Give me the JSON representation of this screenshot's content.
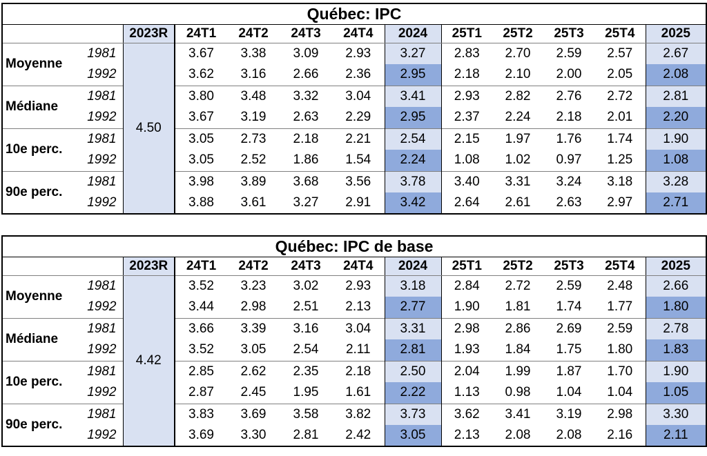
{
  "colors": {
    "prev_fill": "#d9e1f2",
    "annual_fill_1981": "#d9e1f2",
    "annual_fill_1992": "#8faadc",
    "separator_line": "#7f7f7f",
    "border": "#000000"
  },
  "annual_col_indexes": [
    4,
    9
  ],
  "tables": [
    {
      "title": "Québec: IPC",
      "prev_header": "2023R",
      "prev_value": "4.50",
      "columns": [
        "24T1",
        "24T2",
        "24T3",
        "24T4",
        "2024",
        "25T1",
        "25T2",
        "25T3",
        "25T4",
        "2025"
      ],
      "row_groups": [
        {
          "label": "Moyenne",
          "rows": [
            {
              "year": "1981",
              "values": [
                "3.67",
                "3.38",
                "3.09",
                "2.93",
                "3.27",
                "2.83",
                "2.70",
                "2.59",
                "2.57",
                "2.67"
              ]
            },
            {
              "year": "1992",
              "values": [
                "3.62",
                "3.16",
                "2.66",
                "2.36",
                "2.95",
                "2.18",
                "2.10",
                "2.00",
                "2.05",
                "2.08"
              ]
            }
          ]
        },
        {
          "label": "Médiane",
          "rows": [
            {
              "year": "1981",
              "values": [
                "3.80",
                "3.48",
                "3.32",
                "3.04",
                "3.41",
                "2.93",
                "2.82",
                "2.76",
                "2.72",
                "2.81"
              ]
            },
            {
              "year": "1992",
              "values": [
                "3.67",
                "3.19",
                "2.63",
                "2.29",
                "2.95",
                "2.37",
                "2.24",
                "2.18",
                "2.01",
                "2.20"
              ]
            }
          ]
        },
        {
          "label": "10e perc.",
          "rows": [
            {
              "year": "1981",
              "values": [
                "3.05",
                "2.73",
                "2.18",
                "2.21",
                "2.54",
                "2.15",
                "1.97",
                "1.76",
                "1.74",
                "1.90"
              ]
            },
            {
              "year": "1992",
              "values": [
                "3.05",
                "2.52",
                "1.86",
                "1.54",
                "2.24",
                "1.08",
                "1.02",
                "0.97",
                "1.25",
                "1.08"
              ]
            }
          ]
        },
        {
          "label": "90e perc.",
          "rows": [
            {
              "year": "1981",
              "values": [
                "3.98",
                "3.89",
                "3.68",
                "3.56",
                "3.78",
                "3.40",
                "3.31",
                "3.24",
                "3.18",
                "3.28"
              ]
            },
            {
              "year": "1992",
              "values": [
                "3.88",
                "3.61",
                "3.27",
                "2.91",
                "3.42",
                "2.64",
                "2.61",
                "2.63",
                "2.97",
                "2.71"
              ]
            }
          ]
        }
      ]
    },
    {
      "title": "Québec: IPC de base",
      "prev_header": "2023R",
      "prev_value": "4.42",
      "columns": [
        "24T1",
        "24T2",
        "24T3",
        "24T4",
        "2024",
        "25T1",
        "25T2",
        "25T3",
        "25T4",
        "2025"
      ],
      "row_groups": [
        {
          "label": "Moyenne",
          "rows": [
            {
              "year": "1981",
              "values": [
                "3.52",
                "3.23",
                "3.02",
                "2.93",
                "3.18",
                "2.84",
                "2.72",
                "2.59",
                "2.48",
                "2.66"
              ]
            },
            {
              "year": "1992",
              "values": [
                "3.44",
                "2.98",
                "2.51",
                "2.13",
                "2.77",
                "1.90",
                "1.81",
                "1.74",
                "1.77",
                "1.80"
              ]
            }
          ]
        },
        {
          "label": "Médiane",
          "rows": [
            {
              "year": "1981",
              "values": [
                "3.66",
                "3.39",
                "3.16",
                "3.04",
                "3.31",
                "2.98",
                "2.86",
                "2.69",
                "2.59",
                "2.78"
              ]
            },
            {
              "year": "1992",
              "values": [
                "3.52",
                "3.05",
                "2.54",
                "2.11",
                "2.81",
                "1.93",
                "1.84",
                "1.75",
                "1.80",
                "1.83"
              ]
            }
          ]
        },
        {
          "label": "10e perc.",
          "rows": [
            {
              "year": "1981",
              "values": [
                "2.85",
                "2.62",
                "2.35",
                "2.18",
                "2.50",
                "2.04",
                "1.99",
                "1.87",
                "1.70",
                "1.90"
              ]
            },
            {
              "year": "1992",
              "values": [
                "2.87",
                "2.45",
                "1.95",
                "1.61",
                "2.22",
                "1.13",
                "0.98",
                "1.04",
                "1.04",
                "1.05"
              ]
            }
          ]
        },
        {
          "label": "90e perc.",
          "rows": [
            {
              "year": "1981",
              "values": [
                "3.83",
                "3.69",
                "3.58",
                "3.82",
                "3.73",
                "3.62",
                "3.41",
                "3.19",
                "2.98",
                "3.30"
              ]
            },
            {
              "year": "1992",
              "values": [
                "3.69",
                "3.30",
                "2.81",
                "2.42",
                "3.05",
                "2.13",
                "2.08",
                "2.08",
                "2.16",
                "2.11"
              ]
            }
          ]
        }
      ]
    }
  ]
}
